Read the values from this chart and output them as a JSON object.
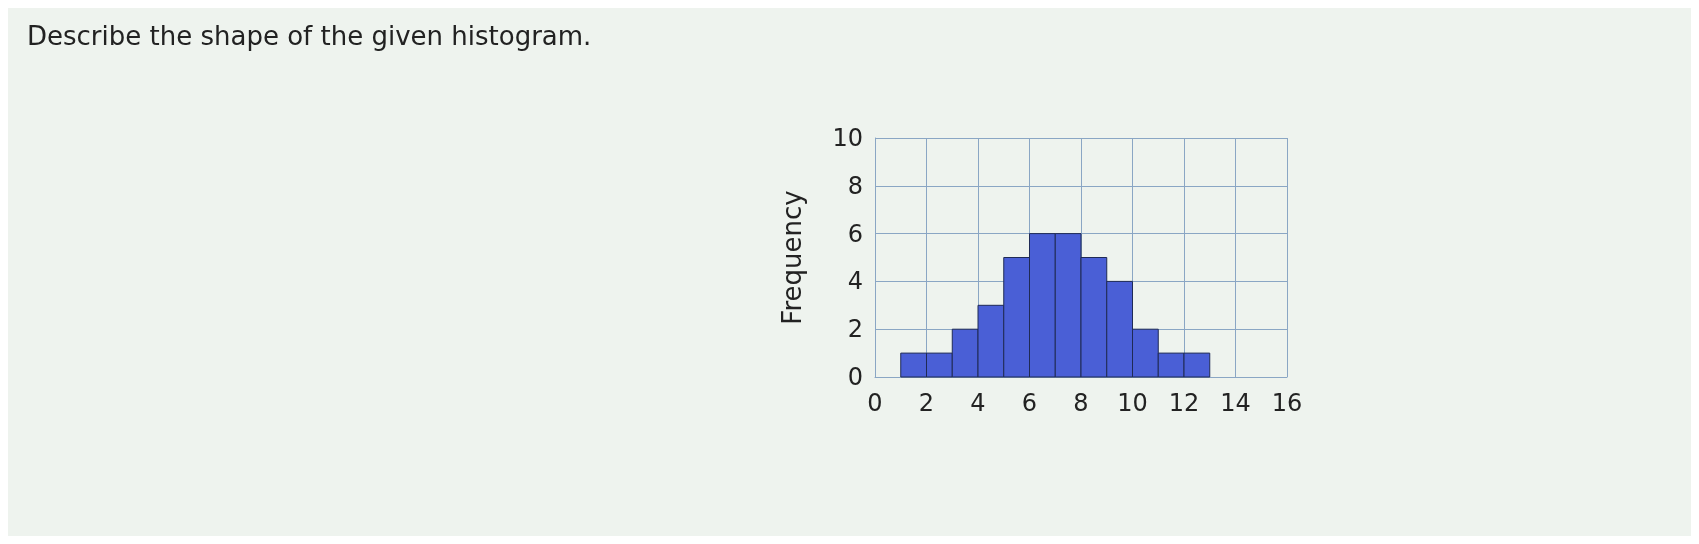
{
  "chart_data": {
    "type": "histogram",
    "title": "Describe the shape of the given histogram.",
    "ylabel": "Frequency",
    "bins": [
      1,
      2,
      3,
      4,
      5,
      6,
      7,
      8,
      9,
      10,
      11,
      12,
      13
    ],
    "values": [
      1,
      1,
      2,
      3,
      5,
      6,
      6,
      5,
      4,
      2,
      1,
      1
    ],
    "color": "#4a5fd6",
    "xlim": [
      0,
      16
    ],
    "xticks": [
      0,
      2,
      4,
      6,
      8,
      10,
      12,
      14,
      16
    ],
    "ylim": [
      0,
      10
    ],
    "yticks": [
      0,
      2,
      4,
      6,
      8,
      10
    ],
    "grid": true
  }
}
